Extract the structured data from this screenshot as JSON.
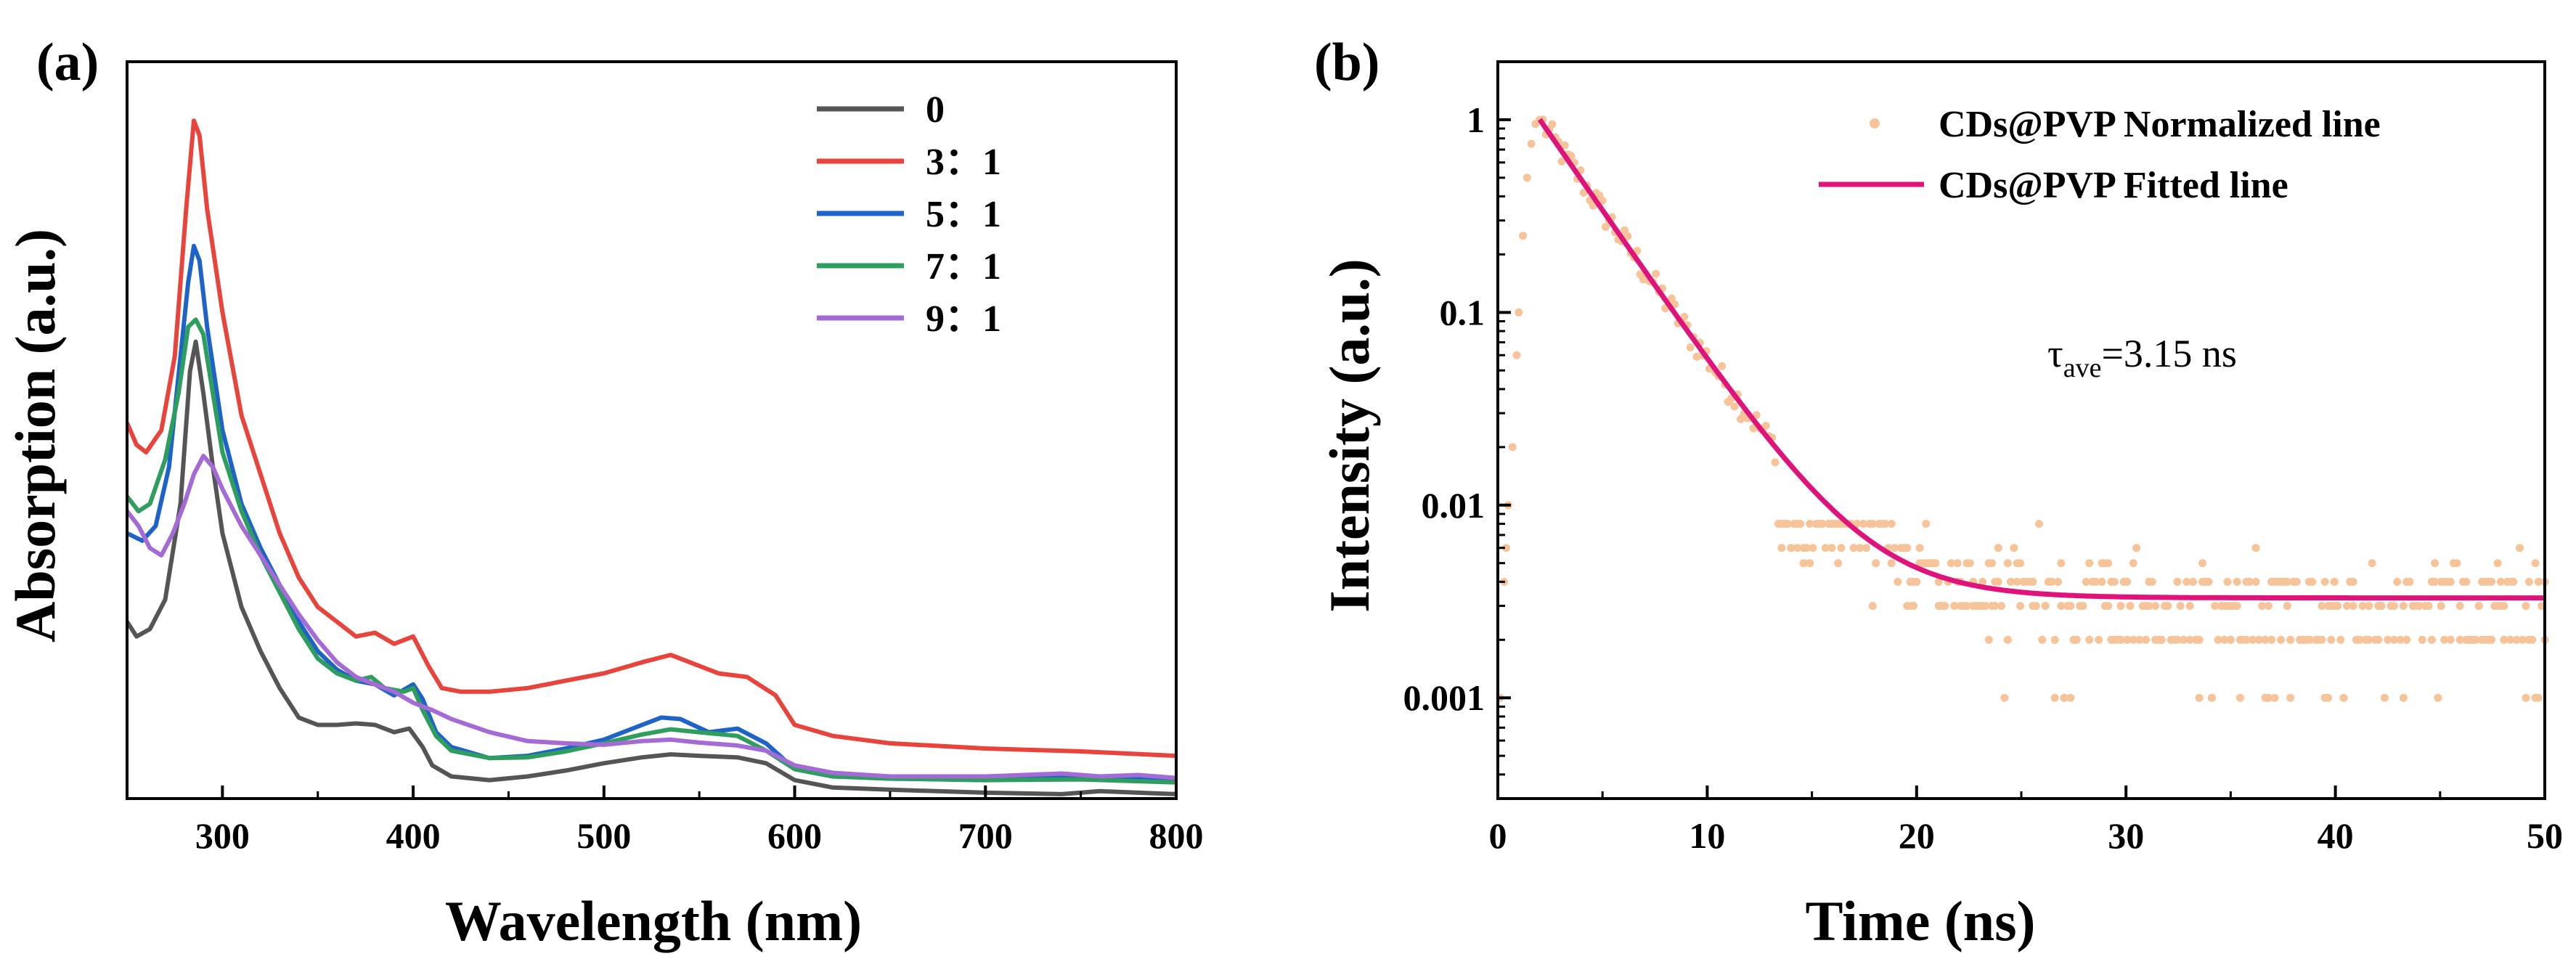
{
  "chart_data": [
    {
      "panel_label": "(a)",
      "type": "line",
      "xlabel": "Wavelength (nm)",
      "ylabel": "Absorption (a.u.)",
      "xlim": [
        250,
        800
      ],
      "ylim": [
        0,
        1
      ],
      "x_ticks": [
        300,
        400,
        500,
        600,
        700,
        800
      ],
      "y_ticks_shown": false,
      "legend_position": "top-center",
      "series": [
        {
          "name": "0",
          "color": "#555555",
          "points": [
            [
              250,
              0.24
            ],
            [
              255,
              0.22
            ],
            [
              262,
              0.23
            ],
            [
              270,
              0.27
            ],
            [
              278,
              0.4
            ],
            [
              283,
              0.58
            ],
            [
              286,
              0.62
            ],
            [
              290,
              0.55
            ],
            [
              295,
              0.45
            ],
            [
              300,
              0.36
            ],
            [
              310,
              0.26
            ],
            [
              320,
              0.2
            ],
            [
              330,
              0.15
            ],
            [
              340,
              0.11
            ],
            [
              350,
              0.1
            ],
            [
              360,
              0.1
            ],
            [
              370,
              0.102
            ],
            [
              380,
              0.1
            ],
            [
              390,
              0.09
            ],
            [
              398,
              0.095
            ],
            [
              405,
              0.07
            ],
            [
              410,
              0.045
            ],
            [
              420,
              0.03
            ],
            [
              440,
              0.025
            ],
            [
              460,
              0.03
            ],
            [
              480,
              0.038
            ],
            [
              500,
              0.048
            ],
            [
              520,
              0.056
            ],
            [
              535,
              0.06
            ],
            [
              550,
              0.058
            ],
            [
              570,
              0.056
            ],
            [
              585,
              0.048
            ],
            [
              600,
              0.025
            ],
            [
              620,
              0.015
            ],
            [
              650,
              0.012
            ],
            [
              700,
              0.008
            ],
            [
              740,
              0.006
            ],
            [
              760,
              0.01
            ],
            [
              780,
              0.008
            ],
            [
              800,
              0.006
            ]
          ]
        },
        {
          "name": "3：1",
          "color": "#e8443c",
          "points": [
            [
              250,
              0.51
            ],
            [
              255,
              0.48
            ],
            [
              260,
              0.47
            ],
            [
              268,
              0.5
            ],
            [
              275,
              0.6
            ],
            [
              281,
              0.8
            ],
            [
              285,
              0.92
            ],
            [
              288,
              0.9
            ],
            [
              292,
              0.8
            ],
            [
              300,
              0.66
            ],
            [
              310,
              0.52
            ],
            [
              320,
              0.44
            ],
            [
              330,
              0.36
            ],
            [
              340,
              0.3
            ],
            [
              350,
              0.26
            ],
            [
              360,
              0.24
            ],
            [
              370,
              0.22
            ],
            [
              380,
              0.225
            ],
            [
              390,
              0.21
            ],
            [
              400,
              0.22
            ],
            [
              408,
              0.18
            ],
            [
              415,
              0.15
            ],
            [
              425,
              0.145
            ],
            [
              440,
              0.145
            ],
            [
              460,
              0.15
            ],
            [
              480,
              0.16
            ],
            [
              500,
              0.17
            ],
            [
              520,
              0.185
            ],
            [
              535,
              0.195
            ],
            [
              545,
              0.185
            ],
            [
              560,
              0.17
            ],
            [
              575,
              0.165
            ],
            [
              590,
              0.14
            ],
            [
              600,
              0.1
            ],
            [
              620,
              0.085
            ],
            [
              650,
              0.075
            ],
            [
              700,
              0.068
            ],
            [
              750,
              0.064
            ],
            [
              800,
              0.058
            ]
          ]
        },
        {
          "name": "5：1",
          "color": "#1e64c8",
          "points": [
            [
              250,
              0.36
            ],
            [
              258,
              0.35
            ],
            [
              265,
              0.37
            ],
            [
              272,
              0.45
            ],
            [
              278,
              0.6
            ],
            [
              282,
              0.7
            ],
            [
              285,
              0.75
            ],
            [
              288,
              0.73
            ],
            [
              292,
              0.64
            ],
            [
              300,
              0.5
            ],
            [
              310,
              0.4
            ],
            [
              320,
              0.34
            ],
            [
              330,
              0.29
            ],
            [
              340,
              0.24
            ],
            [
              350,
              0.2
            ],
            [
              360,
              0.175
            ],
            [
              370,
              0.16
            ],
            [
              380,
              0.155
            ],
            [
              390,
              0.14
            ],
            [
              400,
              0.155
            ],
            [
              405,
              0.135
            ],
            [
              412,
              0.09
            ],
            [
              420,
              0.07
            ],
            [
              440,
              0.055
            ],
            [
              460,
              0.058
            ],
            [
              480,
              0.068
            ],
            [
              500,
              0.08
            ],
            [
              520,
              0.1
            ],
            [
              530,
              0.11
            ],
            [
              540,
              0.108
            ],
            [
              555,
              0.09
            ],
            [
              570,
              0.095
            ],
            [
              585,
              0.075
            ],
            [
              600,
              0.04
            ],
            [
              620,
              0.03
            ],
            [
              650,
              0.028
            ],
            [
              700,
              0.025
            ],
            [
              750,
              0.03
            ],
            [
              800,
              0.025
            ]
          ]
        },
        {
          "name": "7：1",
          "color": "#2e9e5e",
          "points": [
            [
              250,
              0.41
            ],
            [
              256,
              0.39
            ],
            [
              262,
              0.4
            ],
            [
              270,
              0.46
            ],
            [
              277,
              0.55
            ],
            [
              282,
              0.64
            ],
            [
              286,
              0.65
            ],
            [
              290,
              0.63
            ],
            [
              295,
              0.55
            ],
            [
              300,
              0.47
            ],
            [
              310,
              0.39
            ],
            [
              320,
              0.33
            ],
            [
              330,
              0.28
            ],
            [
              340,
              0.23
            ],
            [
              350,
              0.19
            ],
            [
              360,
              0.17
            ],
            [
              370,
              0.16
            ],
            [
              378,
              0.165
            ],
            [
              385,
              0.15
            ],
            [
              395,
              0.145
            ],
            [
              400,
              0.15
            ],
            [
              405,
              0.12
            ],
            [
              412,
              0.085
            ],
            [
              420,
              0.065
            ],
            [
              440,
              0.055
            ],
            [
              460,
              0.056
            ],
            [
              480,
              0.064
            ],
            [
              500,
              0.075
            ],
            [
              520,
              0.087
            ],
            [
              535,
              0.094
            ],
            [
              550,
              0.09
            ],
            [
              570,
              0.085
            ],
            [
              585,
              0.065
            ],
            [
              600,
              0.04
            ],
            [
              620,
              0.03
            ],
            [
              650,
              0.027
            ],
            [
              700,
              0.025
            ],
            [
              750,
              0.026
            ],
            [
              800,
              0.022
            ]
          ]
        },
        {
          "name": "9：1",
          "color": "#a46bd6",
          "points": [
            [
              250,
              0.39
            ],
            [
              256,
              0.37
            ],
            [
              262,
              0.34
            ],
            [
              268,
              0.33
            ],
            [
              274,
              0.36
            ],
            [
              280,
              0.4
            ],
            [
              285,
              0.44
            ],
            [
              290,
              0.465
            ],
            [
              295,
              0.45
            ],
            [
              300,
              0.42
            ],
            [
              310,
              0.37
            ],
            [
              320,
              0.33
            ],
            [
              330,
              0.29
            ],
            [
              340,
              0.25
            ],
            [
              350,
              0.215
            ],
            [
              360,
              0.185
            ],
            [
              370,
              0.165
            ],
            [
              380,
              0.155
            ],
            [
              390,
              0.145
            ],
            [
              400,
              0.13
            ],
            [
              410,
              0.12
            ],
            [
              420,
              0.108
            ],
            [
              440,
              0.09
            ],
            [
              460,
              0.078
            ],
            [
              480,
              0.075
            ],
            [
              500,
              0.073
            ],
            [
              520,
              0.078
            ],
            [
              535,
              0.08
            ],
            [
              550,
              0.076
            ],
            [
              570,
              0.072
            ],
            [
              585,
              0.065
            ],
            [
              600,
              0.045
            ],
            [
              620,
              0.035
            ],
            [
              650,
              0.03
            ],
            [
              700,
              0.03
            ],
            [
              740,
              0.034
            ],
            [
              760,
              0.03
            ],
            [
              780,
              0.032
            ],
            [
              800,
              0.028
            ]
          ]
        }
      ]
    },
    {
      "panel_label": "(b)",
      "type": "scatter+line",
      "xlabel": "Time (ns)",
      "ylabel": "Intensity (a.u.)",
      "xlim": [
        0,
        50
      ],
      "ylim": [
        0.0003,
        2
      ],
      "yscale": "log",
      "x_ticks": [
        0,
        10,
        20,
        30,
        40,
        50
      ],
      "y_ticks": [
        {
          "value": 1,
          "label": "1"
        },
        {
          "value": 0.1,
          "label": "0.1"
        },
        {
          "value": 0.01,
          "label": "0.01"
        },
        {
          "value": 0.001,
          "label": "0.001"
        }
      ],
      "legend_position": "top-right",
      "annotation": {
        "prefix": "τ",
        "subscript": "ave",
        "suffix": "=3.15 ns"
      },
      "series": [
        {
          "name": "CDs@PVP Normalized line",
          "kind": "scatter",
          "color": "#f7c49a",
          "rise": [
            [
              0.1,
              0.001
            ],
            [
              0.3,
              0.004
            ],
            [
              0.4,
              0.006
            ],
            [
              0.5,
              0.01
            ],
            [
              0.7,
              0.02
            ],
            [
              0.9,
              0.06
            ],
            [
              1.0,
              0.1
            ],
            [
              1.2,
              0.25
            ],
            [
              1.4,
              0.5
            ],
            [
              1.6,
              0.75
            ],
            [
              1.8,
              0.95
            ],
            [
              2.0,
              1.0
            ]
          ],
          "decay_fit": {
            "t0": 2.0,
            "A": 1.0,
            "tau": 2.75,
            "offset": 0.0033
          },
          "noise_levels": [
            0.001,
            0.002,
            0.003,
            0.004,
            0.005,
            0.006,
            0.008
          ],
          "t_step": 0.15,
          "t_end": 50
        },
        {
          "name": "CDs@PVP Fitted line",
          "kind": "line",
          "color": "#e0137a",
          "fit": {
            "t0": 2.0,
            "A": 1.0,
            "tau": 2.75,
            "offset": 0.0033
          },
          "t_end": 50
        }
      ]
    }
  ]
}
